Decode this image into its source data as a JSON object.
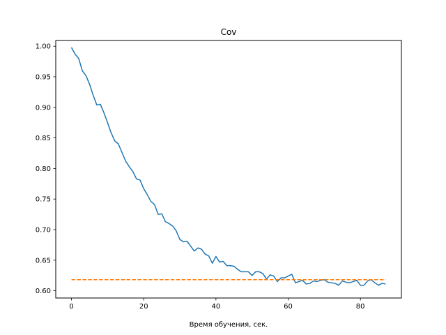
{
  "chart_data": {
    "type": "line",
    "title": "Cov",
    "xlabel": "Время обучения, сек.",
    "ylabel": "",
    "xlim": [
      -4.35,
      91.35
    ],
    "ylim": [
      0.5881,
      1.0094
    ],
    "xticks": [
      0,
      20,
      40,
      60,
      80
    ],
    "xtick_labels": [
      "0",
      "20",
      "40",
      "60",
      "80"
    ],
    "yticks": [
      0.6,
      0.65,
      0.7,
      0.75,
      0.8,
      0.85,
      0.9,
      0.95,
      1.0
    ],
    "ytick_labels": [
      "0.60",
      "0.65",
      "0.70",
      "0.75",
      "0.80",
      "0.85",
      "0.90",
      "0.95",
      "1.00"
    ],
    "grid": false,
    "series": [
      {
        "style": "solid",
        "color": "#1f77b4",
        "x": [
          0,
          1,
          2,
          3,
          4,
          5,
          6,
          7,
          8,
          9,
          10,
          11,
          12,
          13,
          14,
          15,
          16,
          17,
          18,
          19,
          20,
          21,
          22,
          23,
          24,
          25,
          26,
          27,
          28,
          29,
          30,
          31,
          32,
          33,
          34,
          35,
          36,
          37,
          38,
          39,
          40,
          41,
          42,
          43,
          44,
          45,
          46,
          47,
          48,
          49,
          50,
          51,
          52,
          53,
          54,
          55,
          56,
          57,
          58,
          59,
          60,
          61,
          62,
          63,
          64,
          65,
          66,
          67,
          68,
          69,
          70,
          71,
          72,
          73,
          74,
          75,
          76,
          77,
          78,
          79,
          80,
          81,
          82,
          83,
          84,
          85,
          86,
          87
        ],
        "y": [
          0.998,
          0.987,
          0.98,
          0.96,
          0.952,
          0.938,
          0.92,
          0.904,
          0.905,
          0.891,
          0.875,
          0.858,
          0.845,
          0.84,
          0.826,
          0.812,
          0.803,
          0.795,
          0.783,
          0.781,
          0.767,
          0.757,
          0.746,
          0.741,
          0.725,
          0.726,
          0.713,
          0.71,
          0.706,
          0.698,
          0.684,
          0.68,
          0.681,
          0.673,
          0.665,
          0.67,
          0.668,
          0.66,
          0.657,
          0.645,
          0.656,
          0.647,
          0.648,
          0.641,
          0.641,
          0.64,
          0.635,
          0.631,
          0.631,
          0.631,
          0.625,
          0.631,
          0.631,
          0.628,
          0.619,
          0.626,
          0.624,
          0.615,
          0.621,
          0.621,
          0.624,
          0.627,
          0.613,
          0.615,
          0.617,
          0.611,
          0.612,
          0.616,
          0.615,
          0.617,
          0.618,
          0.614,
          0.613,
          0.612,
          0.609,
          0.616,
          0.614,
          0.613,
          0.615,
          0.617,
          0.609,
          0.609,
          0.616,
          0.618,
          0.613,
          0.609,
          0.612,
          0.611
        ]
      },
      {
        "style": "dashed",
        "color": "#ff7f0e",
        "x": [
          0,
          87
        ],
        "y": [
          0.618,
          0.618
        ]
      }
    ]
  }
}
